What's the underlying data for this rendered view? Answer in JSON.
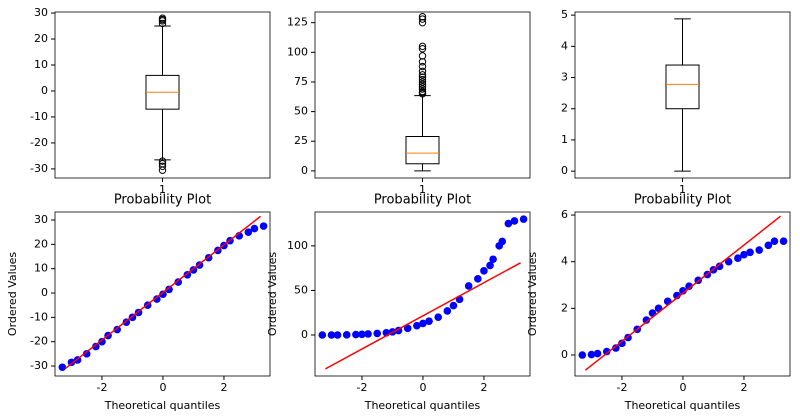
{
  "chart_data": [
    {
      "type": "box",
      "categories": [
        "1"
      ],
      "q1": -7,
      "median": -0.5,
      "q3": 6,
      "whislo": -26.5,
      "whishi": 25,
      "fliers": [
        26,
        27,
        27.5,
        28,
        -27,
        -28,
        -29,
        -30.5
      ],
      "median_color": "#ff7f0e",
      "ylim": [
        -33.5,
        30.4
      ],
      "yticks": [
        -30,
        -20,
        -10,
        0,
        10,
        20,
        30
      ]
    },
    {
      "type": "box",
      "categories": [
        "1"
      ],
      "q1": 6,
      "median": 15,
      "q3": 29,
      "whislo": 0,
      "whishi": 63.5,
      "fliers": [
        65,
        66,
        67,
        69,
        71,
        73,
        75,
        77,
        79,
        81,
        84,
        88,
        92,
        97,
        103,
        105,
        125,
        128,
        130
      ],
      "median_color": "#ff7f0e",
      "ylim": [
        -6,
        134
      ],
      "yticks": [
        0,
        25,
        50,
        75,
        100,
        125
      ]
    },
    {
      "type": "box",
      "categories": [
        "1"
      ],
      "q1": 2.0,
      "median": 2.78,
      "q3": 3.4,
      "whislo": 0,
      "whishi": 4.88,
      "fliers": [],
      "median_color": "#ff7f0e",
      "ylim": [
        -0.22,
        5.1
      ],
      "yticks": [
        0,
        1,
        2,
        3,
        4,
        5
      ]
    },
    {
      "type": "scatter",
      "title": "Probability Plot",
      "xlabel": "Theoretical quantiles",
      "ylabel": "Ordered Values",
      "x": [
        -3.3,
        -3.0,
        -2.8,
        -2.5,
        -2.2,
        -2.0,
        -1.8,
        -1.5,
        -1.2,
        -1.0,
        -0.8,
        -0.5,
        -0.2,
        0,
        0.2,
        0.5,
        0.8,
        1.0,
        1.2,
        1.5,
        1.8,
        2.0,
        2.2,
        2.5,
        2.8,
        3.0,
        3.3
      ],
      "y": [
        -30.5,
        -28.5,
        -27.5,
        -25,
        -22,
        -20,
        -17.5,
        -15,
        -12,
        -10,
        -8,
        -5,
        -2.5,
        -0.5,
        1.5,
        4.5,
        7.5,
        9.5,
        11.5,
        14.5,
        17.5,
        19.5,
        21.5,
        23.5,
        25,
        26.5,
        27.5
      ],
      "color": "#0000ff",
      "fit": {
        "x": [
          -3.2,
          3.2
        ],
        "y": [
          -31,
          31.5
        ],
        "color": "#ff0000"
      },
      "xlim": [
        -3.54,
        3.51
      ],
      "xticks": [
        -2,
        0,
        2
      ],
      "ylim": [
        -34.1,
        33.3
      ],
      "yticks": [
        -30,
        -20,
        -10,
        0,
        10,
        20,
        30
      ]
    },
    {
      "type": "scatter",
      "title": "Probability Plot",
      "xlabel": "Theoretical quantiles",
      "ylabel": "Ordered Values",
      "x": [
        -3.3,
        -3.0,
        -2.8,
        -2.5,
        -2.2,
        -2.0,
        -1.8,
        -1.5,
        -1.2,
        -1.0,
        -0.8,
        -0.5,
        -0.2,
        0,
        0.2,
        0.5,
        0.8,
        1.0,
        1.2,
        1.5,
        1.8,
        2.0,
        2.2,
        2.3,
        2.5,
        2.6,
        2.8,
        3.0,
        3.3
      ],
      "y": [
        0,
        0,
        0,
        0.2,
        0.5,
        0.8,
        1.2,
        1.8,
        2.5,
        3.5,
        5,
        7.5,
        10.5,
        13,
        15.5,
        20,
        27,
        33,
        40,
        55,
        63,
        72,
        78,
        85,
        100,
        105,
        125,
        128,
        130
      ],
      "color": "#0000ff",
      "fit": {
        "x": [
          -3.2,
          3.2
        ],
        "y": [
          -38,
          81
        ],
        "color": "#ff0000"
      },
      "xlim": [
        -3.54,
        3.51
      ],
      "xticks": [
        -2,
        0,
        2
      ],
      "ylim": [
        -46,
        138
      ],
      "yticks": [
        0,
        50,
        100
      ]
    },
    {
      "type": "scatter",
      "title": "Probability Plot",
      "xlabel": "Theoretical quantiles",
      "ylabel": "Ordered Values",
      "x": [
        -3.3,
        -3.0,
        -2.8,
        -2.5,
        -2.2,
        -2.0,
        -1.8,
        -1.5,
        -1.2,
        -1.0,
        -0.8,
        -0.5,
        -0.2,
        0,
        0.2,
        0.5,
        0.8,
        1.0,
        1.2,
        1.5,
        1.8,
        2.0,
        2.2,
        2.5,
        2.8,
        3.0,
        3.3
      ],
      "y": [
        0,
        0.02,
        0.06,
        0.15,
        0.3,
        0.5,
        0.75,
        1.1,
        1.5,
        1.8,
        2.0,
        2.3,
        2.55,
        2.75,
        2.95,
        3.2,
        3.45,
        3.65,
        3.8,
        4.0,
        4.15,
        4.3,
        4.4,
        4.5,
        4.7,
        4.88,
        4.88
      ],
      "color": "#0000ff",
      "fit": {
        "x": [
          -3.2,
          3.2
        ],
        "y": [
          -0.65,
          5.95
        ],
        "color": "#ff0000"
      },
      "xlim": [
        -3.54,
        3.51
      ],
      "xticks": [
        -2,
        0,
        2
      ],
      "ylim": [
        -0.9,
        6.13
      ],
      "yticks": [
        0,
        2,
        4,
        6
      ]
    }
  ]
}
